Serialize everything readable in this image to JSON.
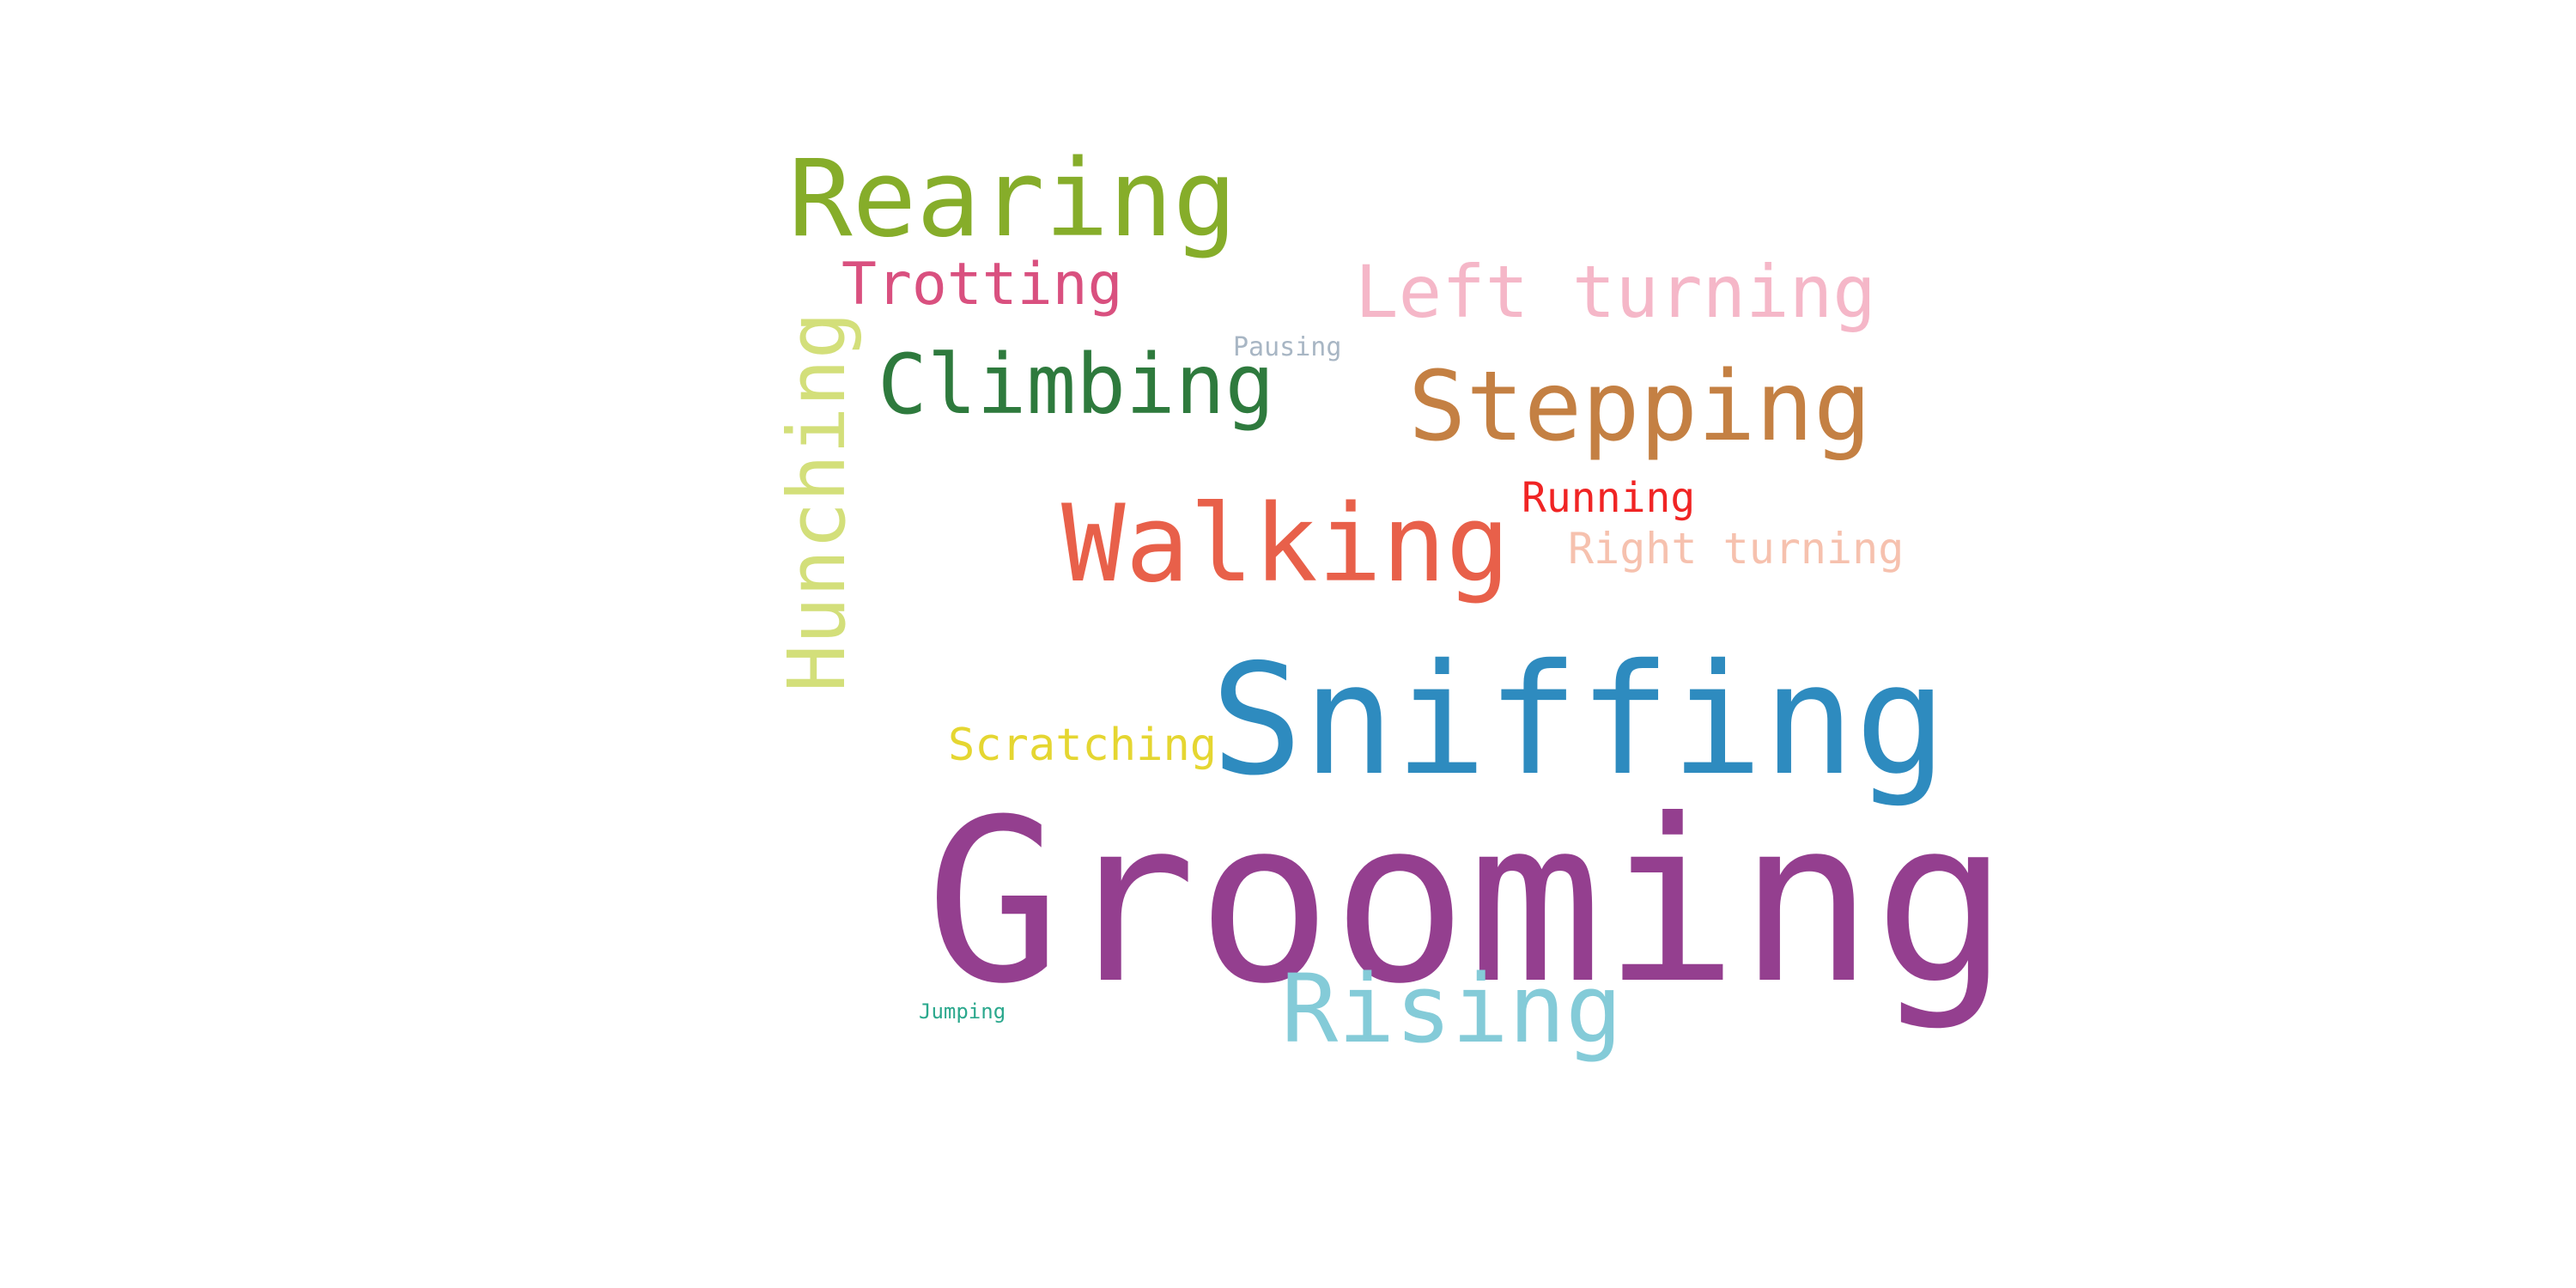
{
  "words": {
    "grooming": {
      "text": "Grooming",
      "color": "#943f8f"
    },
    "sniffing": {
      "text": "Sniffing",
      "color": "#2e8bbf"
    },
    "walking": {
      "text": "Walking",
      "color": "#e8604a"
    },
    "rearing": {
      "text": "Rearing",
      "color": "#86ad2a"
    },
    "stepping": {
      "text": "Stepping",
      "color": "#c48043"
    },
    "climbing": {
      "text": "Climbing",
      "color": "#2e7a3d"
    },
    "rising": {
      "text": "Rising",
      "color": "#84cbd8"
    },
    "left_turning": {
      "text": "Left turning",
      "color": "#f5b7c8"
    },
    "trotting": {
      "text": "Trotting",
      "color": "#d9507f"
    },
    "hunching": {
      "text": "Hunching",
      "color": "#d3df7a"
    },
    "scratching": {
      "text": "Scratching",
      "color": "#e5d631"
    },
    "running": {
      "text": "Running",
      "color": "#f02424"
    },
    "right_turning": {
      "text": "Right turning",
      "color": "#f6c1ae"
    },
    "pausing": {
      "text": "Pausing",
      "color": "#a8b6c4"
    },
    "jumping": {
      "text": "Jumping",
      "color": "#2ba88d"
    }
  }
}
